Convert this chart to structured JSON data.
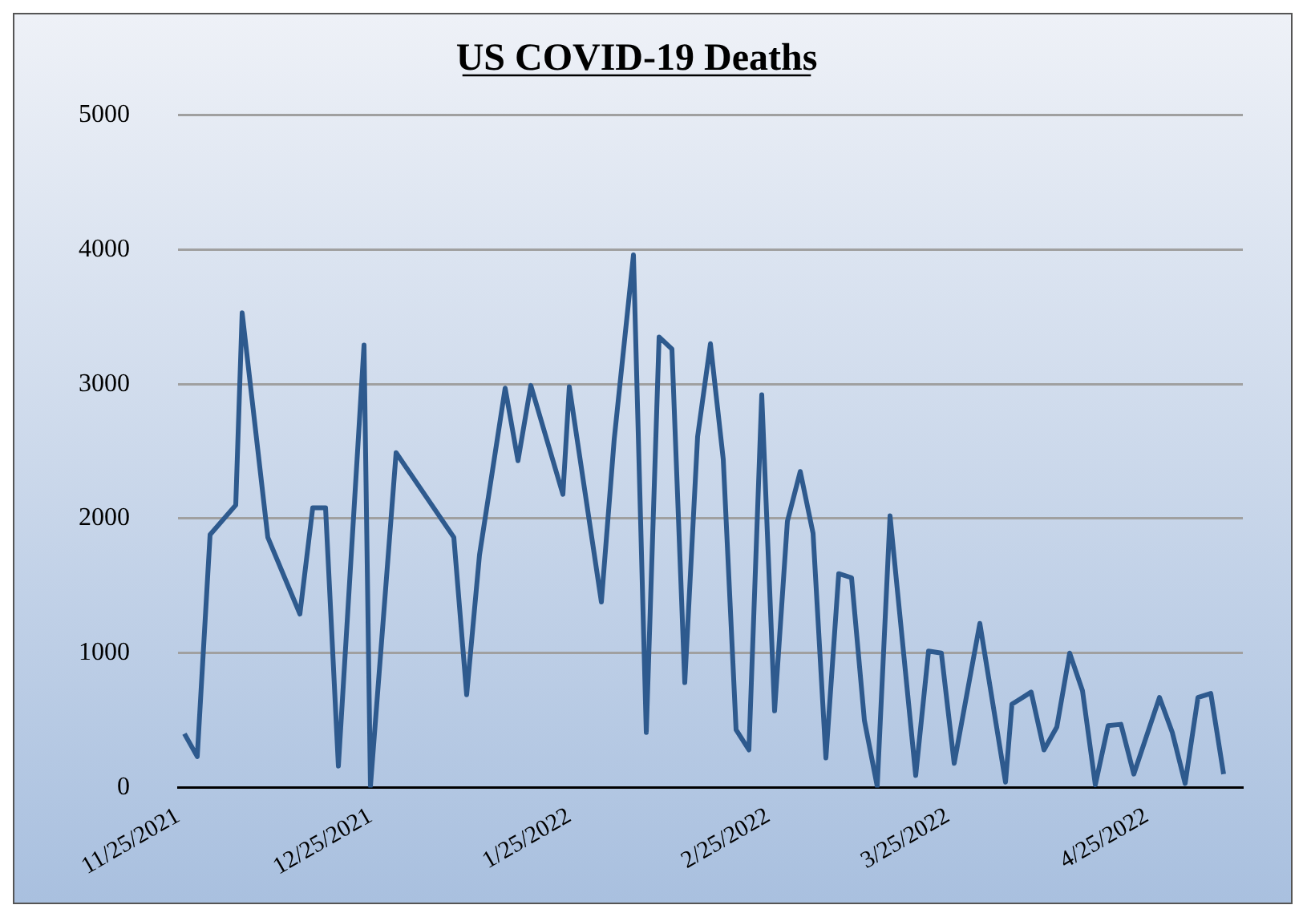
{
  "chart_data": {
    "type": "line",
    "title": "US COVID-19 Deaths",
    "x": [
      "2021-11-26",
      "2021-11-28",
      "2021-11-30",
      "2021-12-04",
      "2021-12-05",
      "2021-12-09",
      "2021-12-14",
      "2021-12-16",
      "2021-12-18",
      "2021-12-20",
      "2021-12-24",
      "2021-12-25",
      "2021-12-29",
      "2022-01-07",
      "2022-01-09",
      "2022-01-11",
      "2022-01-15",
      "2022-01-17",
      "2022-01-19",
      "2022-01-24",
      "2022-01-25",
      "2022-01-30",
      "2022-02-01",
      "2022-02-04",
      "2022-02-06",
      "2022-02-08",
      "2022-02-10",
      "2022-02-12",
      "2022-02-14",
      "2022-02-16",
      "2022-02-18",
      "2022-02-20",
      "2022-02-22",
      "2022-02-24",
      "2022-02-26",
      "2022-02-28",
      "2022-03-02",
      "2022-03-04",
      "2022-03-06",
      "2022-03-08",
      "2022-03-10",
      "2022-03-12",
      "2022-03-14",
      "2022-03-16",
      "2022-03-20",
      "2022-03-22",
      "2022-03-24",
      "2022-03-26",
      "2022-03-30",
      "2022-04-03",
      "2022-04-04",
      "2022-04-07",
      "2022-04-09",
      "2022-04-11",
      "2022-04-13",
      "2022-04-15",
      "2022-04-17",
      "2022-04-19",
      "2022-04-21",
      "2022-04-23",
      "2022-04-27",
      "2022-04-29",
      "2022-05-01",
      "2022-05-03",
      "2022-05-05",
      "2022-05-07"
    ],
    "series": [
      {
        "color": "#2e5a8e",
        "values": [
          400,
          230,
          1880,
          2100,
          3530,
          1860,
          1290,
          2080,
          2080,
          160,
          3290,
          10,
          2490,
          1860,
          690,
          1730,
          2970,
          2430,
          2990,
          2180,
          2980,
          1380,
          2590,
          3960,
          410,
          3350,
          3260,
          780,
          2610,
          3300,
          2440,
          430,
          280,
          2920,
          570,
          1980,
          2350,
          1890,
          220,
          1590,
          1560,
          500,
          10,
          2020,
          90,
          1015,
          1000,
          180,
          1220,
          40,
          620,
          710,
          280,
          450,
          1000,
          720,
          20,
          460,
          470,
          100,
          670,
          410,
          30,
          670,
          700,
          100
        ]
      }
    ],
    "xlim": [
      "2021-11-25",
      "2022-05-10"
    ],
    "xticks": [
      {
        "value": "2021-11-25",
        "label": "11/25/2021"
      },
      {
        "value": "2021-12-25",
        "label": "12/25/2021"
      },
      {
        "value": "2022-01-25",
        "label": "1/25/2022"
      },
      {
        "value": "2022-02-25",
        "label": "2/25/2022"
      },
      {
        "value": "2022-03-25",
        "label": "3/25/2022"
      },
      {
        "value": "2022-04-25",
        "label": "4/25/2022"
      }
    ],
    "ylim": [
      0,
      5000
    ],
    "yticks": [
      0,
      1000,
      2000,
      3000,
      4000,
      5000
    ],
    "grid": "y",
    "legend": false,
    "marker": "none",
    "line_style": "solid"
  }
}
